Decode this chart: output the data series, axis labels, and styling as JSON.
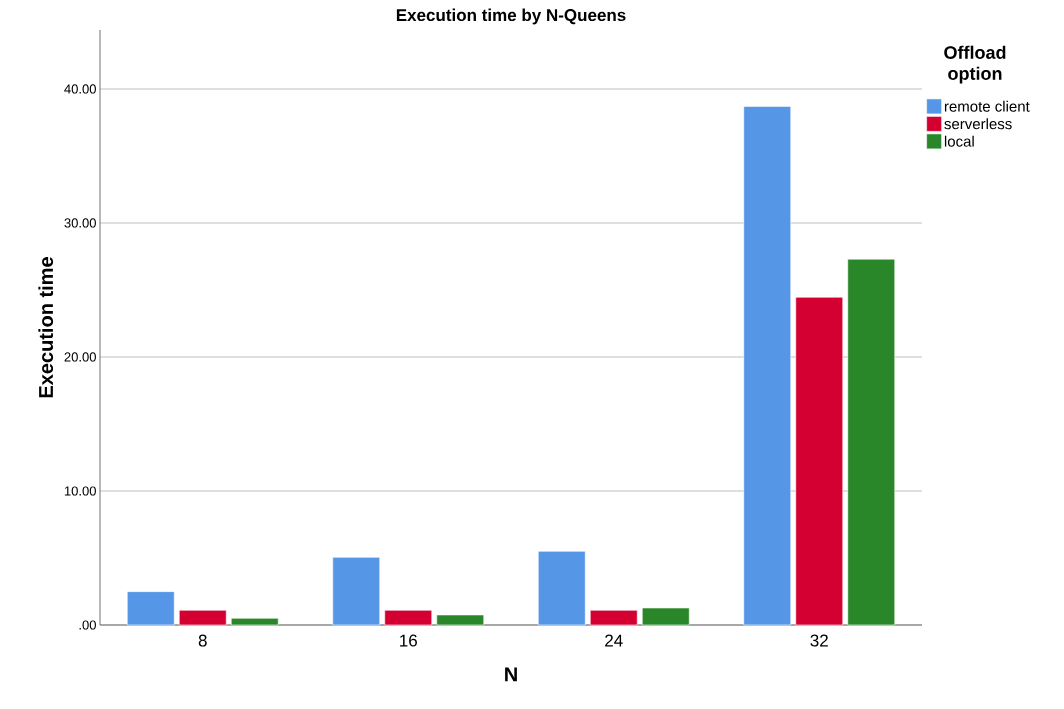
{
  "chart_data": {
    "type": "bar",
    "title": "Execution time by N-Queens",
    "xlabel": "N",
    "ylabel": "Execution time",
    "legend_title": "Offload option",
    "categories": [
      "8",
      "16",
      "24",
      "32"
    ],
    "series": [
      {
        "name": "remote client",
        "color": "#5596e6",
        "values": [
          2.49,
          5.05,
          5.5,
          38.7
        ]
      },
      {
        "name": "serverless",
        "color": "#d50032",
        "values": [
          1.1,
          1.1,
          1.1,
          24.46
        ]
      },
      {
        "name": "local",
        "color": "#298729",
        "values": [
          0.5,
          0.75,
          1.27,
          27.3
        ]
      }
    ],
    "ylim": [
      0,
      44.4
    ],
    "yticks": [
      {
        "value": 0,
        "label": ".00"
      },
      {
        "value": 10,
        "label": "10.00"
      },
      {
        "value": 20,
        "label": "20.00"
      },
      {
        "value": 30,
        "label": "30.00"
      },
      {
        "value": 40,
        "label": "40.00"
      }
    ],
    "grid": "y",
    "legend": "top right"
  }
}
